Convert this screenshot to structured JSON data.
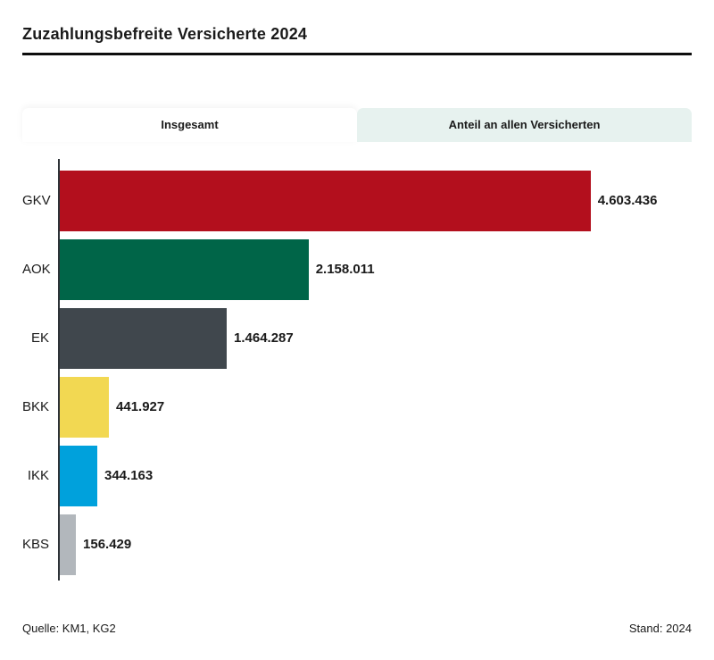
{
  "header": {
    "title": "Zuzahlungsbefreite Versicherte 2024"
  },
  "tabs": {
    "insgesamt": "Insgesamt",
    "anteil": "Anteil an allen Versicherten"
  },
  "chart_data": {
    "type": "bar",
    "orientation": "horizontal",
    "title": "Zuzahlungsbefreite Versicherte 2024",
    "categories": [
      "GKV",
      "AOK",
      "EK",
      "BKK",
      "IKK",
      "KBS"
    ],
    "values": [
      4603436,
      2158011,
      1464287,
      441927,
      344163,
      156429
    ],
    "value_labels": [
      "4.603.436",
      "2.158.011",
      "1.464.287",
      "441.927",
      "344.163",
      "156.429"
    ],
    "bar_colors": [
      "#b30f1d",
      "#006548",
      "#40474d",
      "#f2d852",
      "#00a1dc",
      "#b2b7bc"
    ],
    "xlim": [
      0,
      4603436
    ],
    "grid": false,
    "legend": "none",
    "value_label_position": "outside-end"
  },
  "footer": {
    "source": "Quelle: KM1, KG2",
    "stand": "Stand: 2024"
  },
  "colors": {
    "tab_inactive_bg": "#e7f2ef",
    "title_rule": "#0d0d0d",
    "axis": "#2e3338",
    "text": "#1a1a1a"
  }
}
